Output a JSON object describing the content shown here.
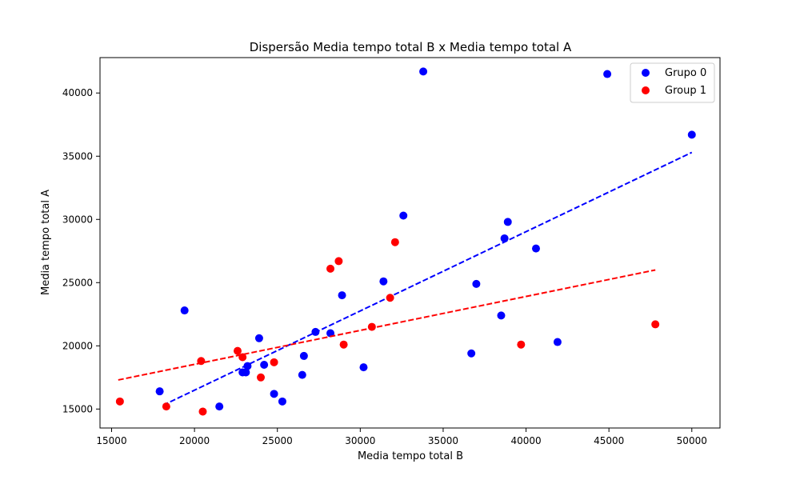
{
  "chart_data": {
    "type": "scatter",
    "title": "Dispersão Media tempo total B x Media tempo total A",
    "xlabel": "Media tempo total B",
    "ylabel": "Media tempo total A",
    "xlim": [
      14300,
      51700
    ],
    "ylim": [
      13500,
      42800
    ],
    "xticks": [
      15000,
      20000,
      25000,
      30000,
      35000,
      40000,
      45000,
      50000
    ],
    "yticks": [
      15000,
      20000,
      25000,
      30000,
      35000,
      40000
    ],
    "xtick_labels": [
      "15000",
      "20000",
      "25000",
      "30000",
      "35000",
      "40000",
      "45000",
      "50000"
    ],
    "ytick_labels": [
      "15000",
      "20000",
      "25000",
      "30000",
      "35000",
      "40000"
    ],
    "grid": false,
    "legend_position": "top-right",
    "series": [
      {
        "name": "Grupo 0",
        "color": "#0000ff",
        "points": [
          [
            17900,
            16400
          ],
          [
            19400,
            22800
          ],
          [
            21500,
            15200
          ],
          [
            22900,
            17900
          ],
          [
            23100,
            17900
          ],
          [
            23200,
            18400
          ],
          [
            23900,
            20600
          ],
          [
            24200,
            18500
          ],
          [
            24800,
            16200
          ],
          [
            25300,
            15600
          ],
          [
            26500,
            17700
          ],
          [
            26600,
            19200
          ],
          [
            27300,
            21100
          ],
          [
            28200,
            21000
          ],
          [
            28900,
            24000
          ],
          [
            30200,
            18300
          ],
          [
            31400,
            25100
          ],
          [
            32600,
            30300
          ],
          [
            33800,
            41700
          ],
          [
            36700,
            19400
          ],
          [
            37000,
            24900
          ],
          [
            38500,
            22400
          ],
          [
            38700,
            28500
          ],
          [
            38900,
            29800
          ],
          [
            40600,
            27700
          ],
          [
            41900,
            20300
          ],
          [
            44900,
            41500
          ],
          [
            50000,
            36700
          ]
        ],
        "fit_line": [
          [
            18100,
            15300
          ],
          [
            50000,
            35300
          ]
        ]
      },
      {
        "name": "Group 1",
        "color": "#ff0000",
        "points": [
          [
            15500,
            15600
          ],
          [
            18300,
            15200
          ],
          [
            20400,
            18800
          ],
          [
            20500,
            14800
          ],
          [
            22600,
            19600
          ],
          [
            22900,
            19100
          ],
          [
            24000,
            17500
          ],
          [
            24800,
            18700
          ],
          [
            28200,
            26100
          ],
          [
            28700,
            26700
          ],
          [
            29000,
            20100
          ],
          [
            30700,
            21500
          ],
          [
            31800,
            23800
          ],
          [
            32100,
            28200
          ],
          [
            39700,
            20100
          ],
          [
            47800,
            21700
          ]
        ],
        "fit_line": [
          [
            15400,
            17300
          ],
          [
            47800,
            26000
          ]
        ]
      }
    ]
  }
}
